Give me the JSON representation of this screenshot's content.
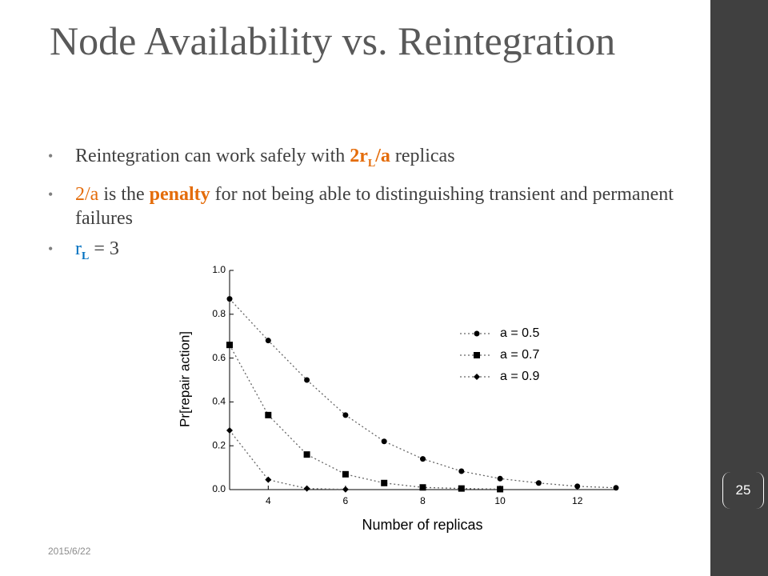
{
  "title": "Node Availability vs. Reintegration",
  "bullets": [
    {
      "parts": [
        "Reintegration can work safely with ",
        "2r",
        "L",
        "/a",
        " replicas"
      ]
    },
    {
      "parts": [
        "2/a",
        " is the ",
        "penalty",
        " for not being able to distinguishing transient and permanent failures"
      ]
    },
    {
      "parts": [
        "r",
        "L",
        " = 3"
      ]
    }
  ],
  "date": "2015/6/22",
  "slide_number": "25",
  "chart_data": {
    "type": "line",
    "xlabel": "Number of replicas",
    "ylabel": "Pr[repair action]",
    "xlim": [
      3,
      13
    ],
    "xticks": [
      4,
      6,
      8,
      10,
      12
    ],
    "ylim": [
      0,
      1
    ],
    "yticks": [
      {
        "value": 0,
        "label": "0.0"
      },
      0.2,
      0.4,
      0.6,
      0.8,
      {
        "value": 1,
        "label": "1.0"
      }
    ],
    "legend": "upper right",
    "series": [
      {
        "name": "a = 0.5",
        "color": "#000000",
        "marker": "circle",
        "x": [
          3,
          4,
          5,
          6,
          7,
          8,
          9,
          10,
          11,
          12,
          13
        ],
        "values": [
          0.87,
          0.68,
          0.5,
          0.34,
          0.22,
          0.14,
          0.084,
          0.05,
          0.03,
          0.015,
          0.008
        ]
      },
      {
        "name": "a = 0.7",
        "color": "#000000",
        "marker": "square",
        "x": [
          3,
          4,
          5,
          6,
          7,
          8,
          9,
          10
        ],
        "values": [
          0.66,
          0.34,
          0.16,
          0.07,
          0.03,
          0.01,
          0.005,
          0.002
        ]
      },
      {
        "name": "a = 0.9",
        "color": "#000000",
        "marker": "diamond",
        "x": [
          3,
          4,
          5,
          6
        ],
        "values": [
          0.27,
          0.045,
          0.005,
          0.001
        ]
      }
    ]
  }
}
